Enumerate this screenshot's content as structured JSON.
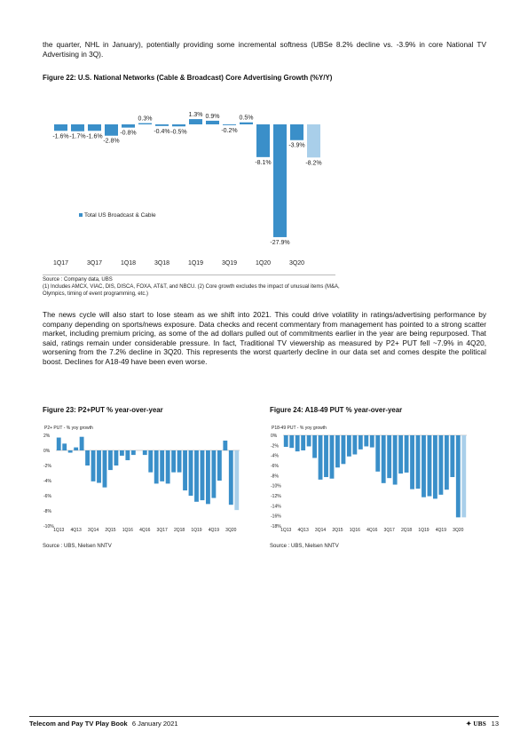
{
  "intro_text": "the quarter, NHL in January), potentially providing some incremental softness (UBSe 8.2% decline vs. -3.9% in core National TV Advertising in 3Q).",
  "fig22": {
    "title": "Figure 22: U.S. National Networks (Cable & Broadcast) Core Advertising Growth (%Y/Y)",
    "source": "Source : Company data, UBS",
    "note": "(1) Includes AMCX, VIAC, DIS, DISCA, FOXA, AT&T, and NBCU. (2) Core growth excludes the impact of unusual items (M&A, Olympics, timing of event programming, etc.)"
  },
  "body_text": "The news cycle will also start to lose steam as we shift into 2021. This could drive volatility in ratings/advertising performance by company depending on sports/news exposure. Data checks and recent commentary from management has pointed to a strong scatter market, including premium pricing, as some of the ad dollars pulled out of commitments earlier in the year are being repurposed. That said, ratings remain under considerable pressure. In fact, Traditional TV viewership as measured by P2+ PUT fell ~7.9% in 4Q20, worsening from the 7.2% decline in 3Q20. This represents the worst quarterly decline in our data set and comes despite the political boost. Declines for A18-49 have been even worse.",
  "fig23": {
    "title": "Figure 23: P2+PUT % year-over-year",
    "source": "Source : UBS, Nielsen NNTV"
  },
  "fig24": {
    "title": "Figure 24: A18-49 PUT % year-over-year",
    "source": "Source : UBS, Nielsen NNTV"
  },
  "footer": {
    "publication": "Telecom and Pay TV Play Book",
    "date": "6 January 2021",
    "brand": "UBS",
    "page": "13"
  },
  "colors": {
    "bar": "#3a8fc9",
    "bar_estimate": "#a9cfea"
  },
  "chart_data": [
    {
      "type": "bar",
      "title": "",
      "categories": [
        "1Q17",
        "2Q17",
        "3Q17",
        "4Q17",
        "1Q18",
        "2Q18",
        "3Q18",
        "4Q18",
        "1Q19",
        "2Q19",
        "3Q19",
        "4Q19",
        "1Q20",
        "2Q20",
        "3Q20",
        "4Q20"
      ],
      "x_tick_labels": [
        "1Q17",
        "3Q17",
        "1Q18",
        "3Q18",
        "1Q19",
        "3Q19",
        "1Q20",
        "3Q20"
      ],
      "series": [
        {
          "name": "Total US Broadcast & Cable",
          "values": [
            -1.6,
            -1.7,
            -1.6,
            -2.8,
            -0.8,
            0.3,
            -0.4,
            -0.5,
            1.3,
            0.9,
            -0.2,
            0.5,
            -8.1,
            -27.9,
            -3.9,
            -8.2
          ]
        }
      ],
      "data_labels": [
        "-1.6%",
        "-1.7%",
        "-1.6%",
        "-2.8%",
        "-0.8%",
        "0.3%",
        "-0.4%",
        "-0.5%",
        "1.3%",
        "0.9%",
        "-0.2%",
        "0.5%",
        "-8.1%",
        "-27.9%",
        "-3.9%",
        "-8.2%"
      ],
      "estimate_index": 15,
      "legend": "bottom-left"
    },
    {
      "type": "bar",
      "title": "P2+ PUT - % yoy growth",
      "x_tick_labels": [
        "1Q13",
        "4Q13",
        "3Q14",
        "2Q15",
        "1Q16",
        "4Q16",
        "3Q17",
        "2Q18",
        "1Q19",
        "4Q19",
        "3Q20"
      ],
      "y_ticks": [
        "2%",
        "0%",
        "-2%",
        "-4%",
        "-6%",
        "-8%",
        "-10%"
      ],
      "ylim": [
        -10,
        2
      ],
      "values": [
        1.7,
        0.9,
        -0.3,
        0.4,
        1.8,
        -2.0,
        -4.1,
        -4.3,
        -4.9,
        -2.6,
        -2.0,
        -0.7,
        -1.3,
        -0.6,
        0,
        -0.6,
        -2.9,
        -4.4,
        -4.1,
        -4.4,
        -2.9,
        -2.9,
        -5.3,
        -6.0,
        -6.8,
        -6.6,
        -7.1,
        -6.3,
        -4.0,
        1.3,
        -7.2,
        -7.9
      ],
      "estimate_index": 31
    },
    {
      "type": "bar",
      "title": "P18-49 PUT - % yoy growth",
      "x_tick_labels": [
        "1Q13",
        "4Q13",
        "3Q14",
        "2Q15",
        "1Q16",
        "4Q16",
        "3Q17",
        "2Q18",
        "1Q19",
        "4Q19",
        "3Q20"
      ],
      "y_ticks": [
        "0%",
        "-2%",
        "-4%",
        "-6%",
        "-8%",
        "-10%",
        "-12%",
        "-14%",
        "-16%",
        "-18%"
      ],
      "ylim": [
        -18,
        0
      ],
      "values": [
        -2.3,
        -2.5,
        -3.2,
        -3.0,
        -2.2,
        -4.5,
        -8.8,
        -8.3,
        -8.6,
        -6.4,
        -5.7,
        -4.2,
        -3.8,
        -2.8,
        -2.2,
        -2.4,
        -7.2,
        -9.5,
        -8.5,
        -9.8,
        -7.6,
        -7.4,
        -10.7,
        -10.6,
        -12.3,
        -12.1,
        -12.6,
        -11.8,
        -10.8,
        -8.3,
        -16.3,
        -16.3
      ],
      "estimate_index": 31
    }
  ]
}
